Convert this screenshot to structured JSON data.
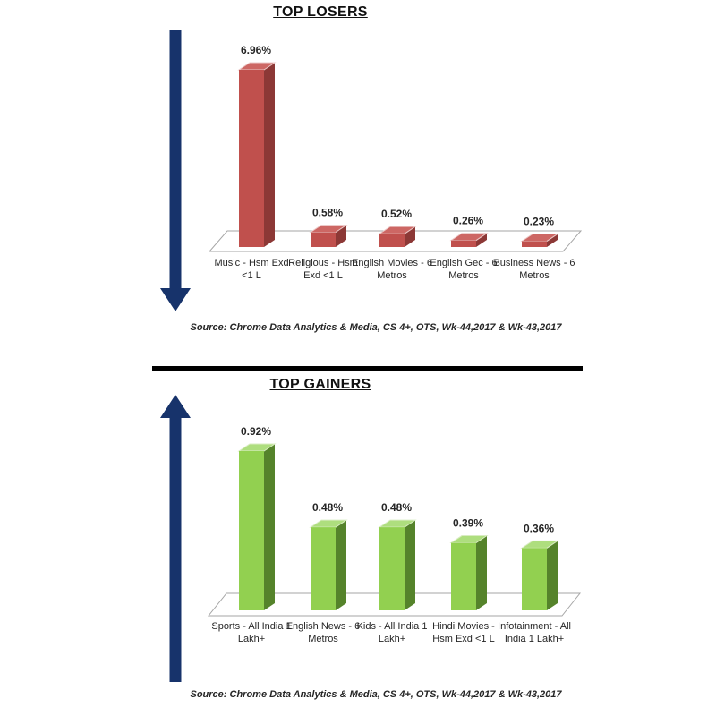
{
  "background": "#ffffff",
  "divider_color": "#000000",
  "chart_data": [
    {
      "type": "bar",
      "title": "TOP LOSERS",
      "categories": [
        "Music - Hsm Exd <1 L",
        "Religious - Hsm Exd <1 L",
        "English Movies - 6 Metros",
        "English Gec - 6 Metros",
        "Business News - 6 Metros"
      ],
      "values": [
        6.96,
        0.58,
        0.52,
        0.26,
        0.23
      ],
      "value_labels": [
        "6.96%",
        "0.58%",
        "0.52%",
        "0.26%",
        "0.23%"
      ],
      "unit": "%",
      "ylim": [
        0,
        7
      ],
      "axes_hidden": true,
      "grid": false,
      "legend": false,
      "style": "3d-column",
      "bar_color": "#c0504d",
      "bar_side_color": "#8c3836",
      "bar_top_color": "#cd6764",
      "bar_edge_color": "#ecc9c8",
      "trend_arrow": "down",
      "arrow_color": "#17336b",
      "source": "Source: Chrome Data Analytics & Media, CS 4+,  OTS, Wk-44,2017 & Wk-43,2017"
    },
    {
      "type": "bar",
      "title": "TOP GAINERS",
      "categories": [
        "Sports - All India 1 Lakh+",
        "English News - 6 Metros",
        "Kids - All India 1 Lakh+",
        "Hindi Movies - Hsm Exd <1 L",
        "Infotainment - All India 1 Lakh+"
      ],
      "values": [
        0.92,
        0.48,
        0.48,
        0.39,
        0.36
      ],
      "value_labels": [
        "0.92%",
        "0.48%",
        "0.48%",
        "0.39%",
        "0.36%"
      ],
      "unit": "%",
      "ylim": [
        0,
        1
      ],
      "axes_hidden": true,
      "grid": false,
      "legend": false,
      "style": "3d-column",
      "bar_color": "#92d050",
      "bar_side_color": "#55832b",
      "bar_top_color": "#aede7e",
      "bar_edge_color": "#d9ecc2",
      "trend_arrow": "up",
      "arrow_color": "#17336b",
      "source": "Source: Chrome Data Analytics & Media, CS 4+,  OTS, Wk-44,2017 & Wk-43,2017"
    }
  ]
}
